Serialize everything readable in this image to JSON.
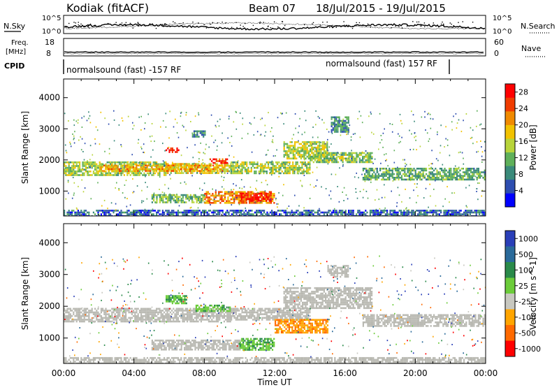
{
  "header": {
    "station": "Kodiak (fitACF)",
    "beam": "Beam 07",
    "date_range": "18/Jul/2015 - 19/Jul/2015"
  },
  "summary_panels": {
    "nsky": {
      "label": "N.Sky",
      "ticks": [
        "10^5",
        "10^0"
      ]
    },
    "nsearch": {
      "label": "N.Search",
      "ticks": [
        "10^5",
        "10^0"
      ]
    },
    "freq": {
      "label_line1": "Freq.",
      "label_line2": "[MHz]",
      "ticks": [
        "18",
        "8"
      ]
    },
    "nave": {
      "label": "Nave",
      "ticks": [
        "60",
        "0"
      ]
    },
    "cpid": {
      "label": "CPID",
      "entries": [
        "normalsound (fast) -157 RF",
        "normalsound (fast) 157 RF"
      ]
    }
  },
  "colors": {
    "power_scale": [
      "#0000ff",
      "#2e4eb0",
      "#3a8a7a",
      "#5fb05a",
      "#b8d43a",
      "#f2c200",
      "#f08a00",
      "#f03c00",
      "#ff0000"
    ],
    "velocity_scale": [
      "#2a3fb8",
      "#2a6a9a",
      "#2a8a4a",
      "#6ccc3a",
      "#c8c8c0",
      "#ffa500",
      "#ff6a00",
      "#ff0000"
    ],
    "ground_scatter": "#b9b9b2"
  },
  "chart_data": [
    {
      "type": "heatmap",
      "panel": "power",
      "ylabel": "Slant Range [km]",
      "xlabel": "",
      "y_ticks": [
        "1000",
        "2000",
        "3000",
        "4000"
      ],
      "x_ticks": [
        "00:00",
        "04:00",
        "08:00",
        "12:00",
        "16:00",
        "20:00",
        "00:00"
      ],
      "ylim": [
        200,
        4600
      ],
      "xlim": [
        0,
        24
      ],
      "colorbar": {
        "label": "Power [dB]",
        "ticks": [
          "4",
          "8",
          "12",
          "16",
          "20",
          "24",
          "28"
        ],
        "range": [
          0,
          30
        ]
      },
      "regions": [
        {
          "t0": 0.0,
          "t1": 5.8,
          "r0": 1500,
          "r1": 1950,
          "level": 14
        },
        {
          "t0": 5.8,
          "t1": 9.5,
          "r0": 1550,
          "r1": 1900,
          "level": 17
        },
        {
          "t0": 9.5,
          "t1": 14.0,
          "r0": 1550,
          "r1": 1950,
          "level": 14
        },
        {
          "t0": 12.5,
          "t1": 15.0,
          "r0": 2050,
          "r1": 2600,
          "level": 15
        },
        {
          "t0": 14.0,
          "t1": 17.5,
          "r0": 1950,
          "r1": 2250,
          "level": 13
        },
        {
          "t0": 17.0,
          "t1": 24.0,
          "r0": 1350,
          "r1": 1750,
          "level": 11
        },
        {
          "t0": 5.0,
          "t1": 8.0,
          "r0": 650,
          "r1": 900,
          "level": 12
        },
        {
          "t0": 8.0,
          "t1": 12.0,
          "r0": 600,
          "r1": 1000,
          "level": 22
        },
        {
          "t0": 10.0,
          "t1": 11.8,
          "r0": 700,
          "r1": 950,
          "level": 27
        },
        {
          "t0": 2.0,
          "t1": 9.0,
          "r0": 1650,
          "r1": 1850,
          "level": 20
        },
        {
          "t0": 5.8,
          "t1": 6.5,
          "r0": 2250,
          "r1": 2400,
          "level": 28
        },
        {
          "t0": 8.3,
          "t1": 9.3,
          "r0": 1900,
          "r1": 2050,
          "level": 27
        },
        {
          "t0": 7.3,
          "t1": 8.0,
          "r0": 2750,
          "r1": 2950,
          "level": 8
        },
        {
          "t0": 15.2,
          "t1": 16.2,
          "r0": 2900,
          "r1": 3400,
          "level": 9
        },
        {
          "t0": 0.0,
          "t1": 24.0,
          "r0": 200,
          "r1": 400,
          "level": 6
        }
      ]
    },
    {
      "type": "heatmap",
      "panel": "velocity",
      "ylabel": "Slant Range [km]",
      "xlabel": "Time UT",
      "y_ticks": [
        "1000",
        "2000",
        "3000",
        "4000"
      ],
      "x_ticks": [
        "00:00",
        "04:00",
        "08:00",
        "12:00",
        "16:00",
        "20:00",
        "00:00"
      ],
      "ylim": [
        200,
        4600
      ],
      "xlim": [
        0,
        24
      ],
      "colorbar": {
        "label": "Velocity [m s^-1]",
        "ticks": [
          "1000",
          "500",
          "100",
          "25",
          "-25",
          "-100",
          "-500",
          "-1000"
        ]
      },
      "regions": [
        {
          "t0": 0.0,
          "t1": 9.5,
          "r0": 1500,
          "r1": 1950,
          "class": "ground"
        },
        {
          "t0": 9.5,
          "t1": 14.0,
          "r0": 1550,
          "r1": 1950,
          "class": "ground"
        },
        {
          "t0": 12.5,
          "t1": 17.5,
          "r0": 1950,
          "r1": 2600,
          "class": "ground"
        },
        {
          "t0": 17.0,
          "t1": 24.0,
          "r0": 1350,
          "r1": 1750,
          "class": "ground"
        },
        {
          "t0": 5.0,
          "t1": 10.0,
          "r0": 650,
          "r1": 950,
          "class": "ground"
        },
        {
          "t0": 10.0,
          "t1": 12.0,
          "r0": 650,
          "r1": 1000,
          "class": "positive"
        },
        {
          "t0": 12.0,
          "t1": 15.0,
          "r0": 1150,
          "r1": 1600,
          "class": "negative"
        },
        {
          "t0": 5.8,
          "t1": 7.0,
          "r0": 2100,
          "r1": 2350,
          "class": "positive"
        },
        {
          "t0": 7.5,
          "t1": 9.5,
          "r0": 1850,
          "r1": 2050,
          "class": "positive"
        },
        {
          "t0": 15.0,
          "t1": 16.2,
          "r0": 2900,
          "r1": 3300,
          "class": "ground"
        },
        {
          "t0": 0.0,
          "t1": 24.0,
          "r0": 200,
          "r1": 400,
          "class": "ground"
        }
      ]
    }
  ]
}
